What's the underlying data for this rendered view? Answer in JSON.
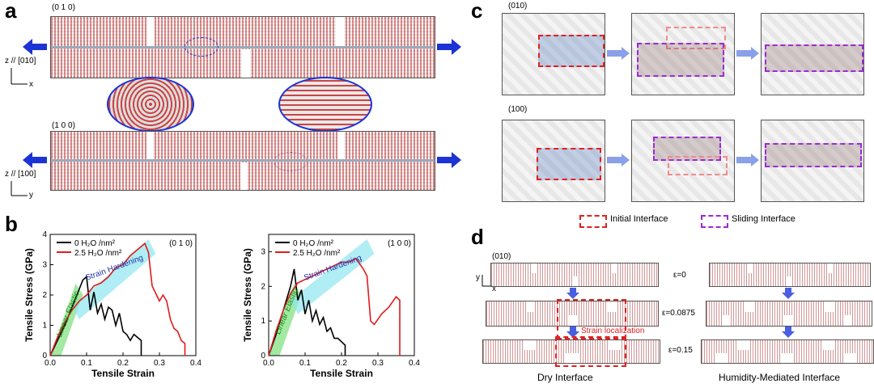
{
  "panels": {
    "a": {
      "label": "a",
      "top_orient": "(0 1 0)",
      "bottom_orient": "(1 0 0)",
      "axis_top_z": "z // [010]",
      "axis_top_x": "x",
      "axis_bottom_z": "z // [100]",
      "axis_bottom_y": "y"
    },
    "b": {
      "label": "b",
      "ylabel": "Tensile Stress (GPa)",
      "xlabel": "Tensile Strain",
      "legend_dry": "0 H₂O /nm²",
      "legend_wet": "2.5 H₂O /nm²",
      "linear_elastic": "Linear Elastic",
      "strain_hardening": "Strain Hardening"
    },
    "c": {
      "label": "c",
      "row1": "(010)",
      "row2": "(100)",
      "legend_initial": "Initial Interface",
      "legend_sliding": "Sliding Interface"
    },
    "d": {
      "label": "d",
      "orient": "(010)",
      "axis_y": "y",
      "axis_x": "x",
      "eps0": "ε=0",
      "eps1": "ε=0.0875",
      "eps2": "ε=0.15",
      "strain_loc": "Strain localization",
      "caption_dry": "Dry Interface",
      "caption_wet": "Humidity-Mediated Interface"
    }
  },
  "colors": {
    "dry": "#000000",
    "wet": "#e01b1b",
    "elastic": "#7be07b",
    "hardening": "#8fe6f0",
    "arrow": "#1c33d6"
  },
  "chart_data": [
    {
      "type": "line",
      "orientation_label": "(0 1 0)",
      "xlabel": "Tensile Strain",
      "ylabel": "Tensile Stress (GPa)",
      "xlim": [
        0,
        0.4
      ],
      "ylim": [
        0,
        4
      ],
      "xticks": [
        "0.0",
        "0.1",
        "0.2",
        "0.3",
        "0.4"
      ],
      "yticks": [
        "0",
        "1",
        "2",
        "3",
        "4"
      ],
      "series": [
        {
          "name": "0 H₂O /nm²",
          "color": "#000000",
          "x": [
            0,
            0.02,
            0.04,
            0.06,
            0.08,
            0.09,
            0.1,
            0.11,
            0.12,
            0.13,
            0.14,
            0.15,
            0.16,
            0.17,
            0.18,
            0.19,
            0.2,
            0.21,
            0.22,
            0.23,
            0.24,
            0.25,
            0.25
          ],
          "y": [
            0,
            0.5,
            1.0,
            1.6,
            2.2,
            2.5,
            2.6,
            1.5,
            2.1,
            1.4,
            1.7,
            1.2,
            1.6,
            1.5,
            1.0,
            1.4,
            0.8,
            0.7,
            0.5,
            0.7,
            0.6,
            0.5,
            0
          ]
        },
        {
          "name": "2.5 H₂O /nm²",
          "color": "#e01b1b",
          "x": [
            0,
            0.02,
            0.04,
            0.06,
            0.08,
            0.1,
            0.12,
            0.14,
            0.16,
            0.18,
            0.2,
            0.22,
            0.24,
            0.26,
            0.27,
            0.28,
            0.3,
            0.31,
            0.32,
            0.33,
            0.34,
            0.35,
            0.36,
            0.37,
            0.37
          ],
          "y": [
            0,
            0.6,
            1.1,
            1.5,
            1.8,
            2.0,
            2.3,
            2.4,
            2.6,
            2.9,
            3.0,
            3.3,
            3.5,
            3.7,
            3.4,
            2.3,
            1.8,
            2.0,
            1.8,
            1.2,
            0.9,
            0.8,
            0.5,
            0.4,
            0
          ]
        }
      ]
    },
    {
      "type": "line",
      "orientation_label": "(1 0 0)",
      "xlabel": "Tensile Strain",
      "ylabel": "Tensile Stress (GPa)",
      "xlim": [
        0,
        0.4
      ],
      "ylim": [
        0,
        3.5
      ],
      "xticks": [
        "0.0",
        "0.1",
        "0.2",
        "0.3",
        "0.4"
      ],
      "yticks": [
        "0",
        "1",
        "2",
        "3"
      ],
      "series": [
        {
          "name": "0 H₂O /nm²",
          "color": "#000000",
          "x": [
            0,
            0.02,
            0.04,
            0.06,
            0.07,
            0.08,
            0.09,
            0.1,
            0.11,
            0.12,
            0.13,
            0.14,
            0.15,
            0.16,
            0.17,
            0.18,
            0.19,
            0.2,
            0.21,
            0.21
          ],
          "y": [
            0,
            0.6,
            1.3,
            2.0,
            2.5,
            1.6,
            1.9,
            1.2,
            1.6,
            1.0,
            1.3,
            0.9,
            1.1,
            0.7,
            0.8,
            0.5,
            0.5,
            0.4,
            0.3,
            0
          ]
        },
        {
          "name": "2.5 H₂O /nm²",
          "color": "#e01b1b",
          "x": [
            0,
            0.02,
            0.04,
            0.06,
            0.08,
            0.1,
            0.12,
            0.14,
            0.16,
            0.18,
            0.2,
            0.22,
            0.24,
            0.26,
            0.27,
            0.28,
            0.29,
            0.31,
            0.33,
            0.35,
            0.36,
            0.36
          ],
          "y": [
            0,
            0.7,
            1.3,
            1.8,
            2.1,
            2.2,
            2.3,
            2.4,
            2.5,
            2.6,
            2.7,
            2.7,
            2.8,
            2.5,
            2.3,
            1.0,
            0.9,
            1.2,
            1.4,
            1.7,
            1.6,
            0
          ]
        }
      ]
    }
  ]
}
